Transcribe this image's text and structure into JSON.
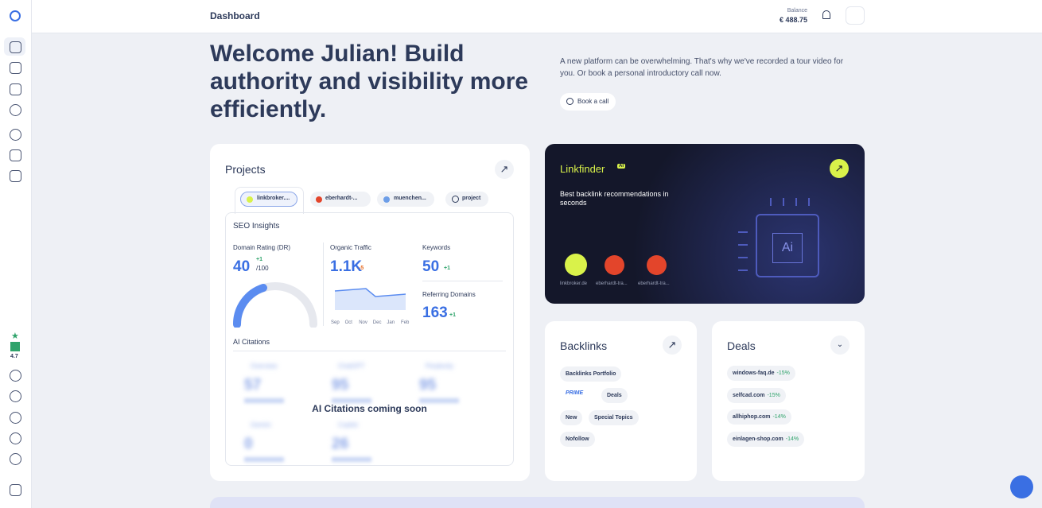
{
  "header": {
    "title": "Dashboard",
    "balance_label": "Balance",
    "balance_value": "€ 488.75"
  },
  "sidebar": {
    "rating": "4.7"
  },
  "welcome": {
    "heading": "Welcome Julian! Build authority and visibility more efficiently.",
    "text": "A new platform can be overwhelming. That's why we've recorded a tour video for you. Or book a personal introductory call now.",
    "button": "Book a call"
  },
  "projects": {
    "title": "Projects",
    "tabs": [
      "linkbroker....",
      "eberhardt-...",
      "muenchen...",
      "project"
    ],
    "seo": {
      "title": "SEO Insights",
      "domain_rating": {
        "label": "Domain Rating (DR)",
        "value": "40",
        "delta": "+1",
        "max": "/100"
      },
      "organic_traffic": {
        "label": "Organic Traffic",
        "value": "1.1K",
        "delta": "-5",
        "months": [
          "Sep",
          "Oct",
          "Nov",
          "Dec",
          "Jan",
          "Feb"
        ]
      },
      "keywords": {
        "label": "Keywords",
        "value": "50",
        "delta": "+1"
      },
      "referring_domains": {
        "label": "Referring Domains",
        "value": "163",
        "delta": "+1"
      }
    },
    "ai_citations": {
      "title": "AI Citations",
      "overlay": "AI Citations coming soon",
      "items": [
        {
          "name": "Overview",
          "value": "57"
        },
        {
          "name": "ChatGPT",
          "value": "95"
        },
        {
          "name": "Perplexity",
          "value": "95"
        },
        {
          "name": "Gemini",
          "value": "0"
        },
        {
          "name": "Copilot",
          "value": "26"
        }
      ]
    }
  },
  "linkfinder": {
    "title": "Linkfinder",
    "badge": "AI",
    "text": "Best backlink recommendations in seconds",
    "chip": "Ai",
    "sites": [
      "linkbroker.de",
      "eberhardt-tra...",
      "eberhardt-tra..."
    ]
  },
  "backlinks": {
    "title": "Backlinks",
    "logo": "PRIME",
    "tags": [
      "Backlinks Portfolio",
      "Deals",
      "New",
      "Special Topics",
      "Nofollow"
    ]
  },
  "deals": {
    "title": "Deals",
    "items": [
      {
        "name": "windows-faq.de",
        "discount": "-15%"
      },
      {
        "name": "selfcad.com",
        "discount": "-15%"
      },
      {
        "name": "allhiphop.com",
        "discount": "-14%"
      },
      {
        "name": "einlagen-shop.com",
        "discount": "-14%"
      }
    ]
  }
}
